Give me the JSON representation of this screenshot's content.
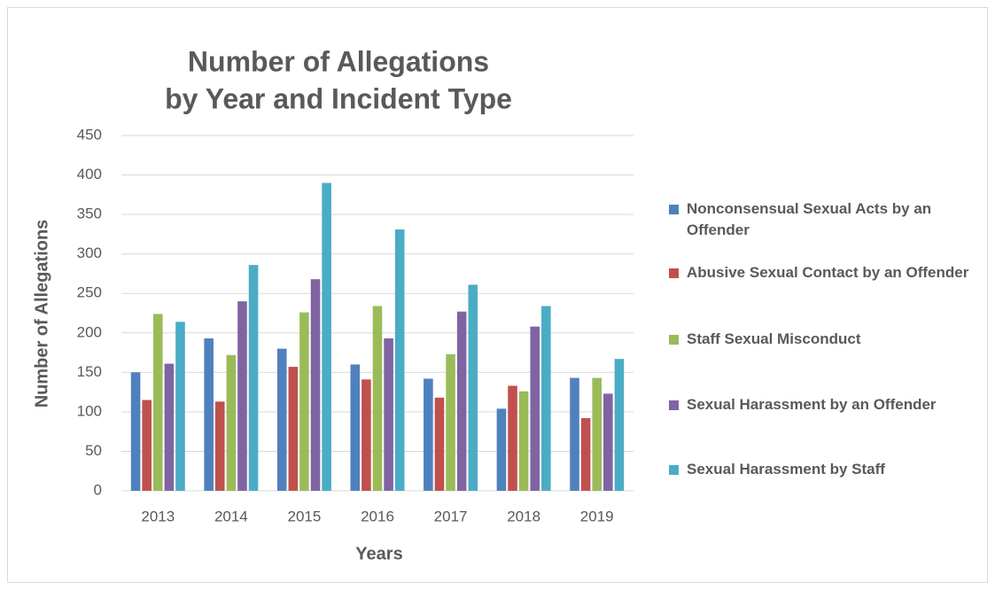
{
  "chart_data": {
    "type": "bar",
    "title": [
      "Number of Allegations",
      "by Year and Incident Type"
    ],
    "x_label": "Years",
    "y_label": "Number of Allegations",
    "categories": [
      "2013",
      "2014",
      "2015",
      "2016",
      "2017",
      "2018",
      "2019"
    ],
    "series": [
      {
        "name": "Nonconsensual Sexual Acts by an Offender",
        "color": "#4f81bd",
        "values": [
          150,
          193,
          180,
          160,
          142,
          104,
          143
        ]
      },
      {
        "name": "Abusive Sexual Contact by an Offender",
        "color": "#c0504d",
        "values": [
          115,
          113,
          157,
          141,
          118,
          133,
          92
        ]
      },
      {
        "name": "Staff Sexual Misconduct",
        "color": "#9bbb59",
        "values": [
          224,
          172,
          226,
          234,
          173,
          126,
          143
        ]
      },
      {
        "name": "Sexual Harassment by an Offender",
        "color": "#8064a2",
        "values": [
          161,
          240,
          268,
          193,
          227,
          208,
          123
        ]
      },
      {
        "name": "Sexual Harassment by Staff",
        "color": "#4bacc6",
        "values": [
          214,
          286,
          390,
          331,
          261,
          234,
          167
        ]
      }
    ],
    "ylim": [
      0,
      450
    ],
    "yticks": [
      0,
      50,
      100,
      150,
      200,
      250,
      300,
      350,
      400,
      450
    ],
    "grid": true,
    "legend": "right"
  }
}
